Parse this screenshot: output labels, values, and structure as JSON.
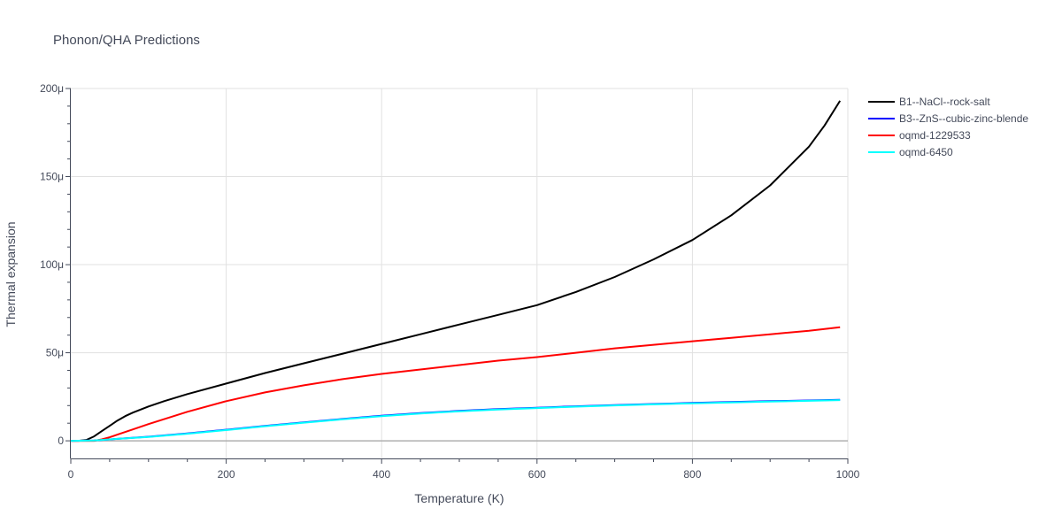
{
  "chart_data": {
    "type": "line",
    "title": "Phonon/QHA Predictions",
    "xlabel": "Temperature (K)",
    "ylabel": "Thermal expansion",
    "xlim": [
      0,
      1000
    ],
    "ylim": [
      -10,
      200
    ],
    "x_ticks": [
      0,
      200,
      400,
      600,
      800,
      1000
    ],
    "x_tick_labels": [
      "0",
      "200",
      "400",
      "600",
      "800",
      "1000"
    ],
    "y_ticks": [
      0,
      50,
      100,
      150,
      200
    ],
    "y_tick_labels": [
      "0",
      "50μ",
      "100μ",
      "150μ",
      "200μ"
    ],
    "grid": true,
    "legend_position": "top-right",
    "series": [
      {
        "name": "B1--NaCl--rock-salt",
        "color": "#000000",
        "x": [
          0,
          10,
          20,
          30,
          40,
          50,
          60,
          70,
          80,
          100,
          120,
          150,
          200,
          250,
          300,
          350,
          400,
          450,
          500,
          550,
          600,
          650,
          700,
          750,
          800,
          850,
          900,
          950,
          970,
          990
        ],
        "y": [
          0,
          0,
          0.5,
          2.5,
          5.5,
          8.5,
          11.5,
          14,
          16,
          19.5,
          22.5,
          26.5,
          32.5,
          38.5,
          44,
          49.5,
          55,
          60.5,
          66,
          71.5,
          77,
          84.5,
          93,
          103,
          114,
          128,
          145,
          167,
          179,
          193
        ]
      },
      {
        "name": "B3--ZnS--cubic-zinc-blende",
        "color": "#0000ff",
        "x": [
          0,
          30,
          50,
          100,
          150,
          200,
          250,
          300,
          350,
          400,
          450,
          500,
          550,
          600,
          650,
          700,
          750,
          800,
          850,
          900,
          950,
          990
        ],
        "y": [
          0,
          0.2,
          0.8,
          2.3,
          4.2,
          6.3,
          8.5,
          10.5,
          12.4,
          14.2,
          15.7,
          17,
          18,
          18.8,
          19.6,
          20.3,
          20.9,
          21.5,
          22,
          22.5,
          22.9,
          23.3
        ]
      },
      {
        "name": "oqmd-1229533",
        "color": "#ff0000",
        "x": [
          0,
          20,
          30,
          40,
          50,
          60,
          80,
          100,
          150,
          200,
          250,
          300,
          350,
          400,
          450,
          500,
          550,
          600,
          650,
          700,
          750,
          800,
          850,
          900,
          950,
          990
        ],
        "y": [
          0,
          0,
          0,
          0.8,
          2,
          3.5,
          6.5,
          9.5,
          16.5,
          22.5,
          27.5,
          31.5,
          35,
          38,
          40.5,
          43,
          45.5,
          47.5,
          50,
          52.5,
          54.5,
          56.5,
          58.5,
          60.5,
          62.5,
          64.5
        ]
      },
      {
        "name": "oqmd-6450",
        "color": "#00ffff",
        "x": [
          0,
          30,
          50,
          100,
          150,
          200,
          250,
          300,
          350,
          400,
          450,
          500,
          550,
          600,
          650,
          700,
          750,
          800,
          850,
          900,
          950,
          990
        ],
        "y": [
          0,
          0.2,
          0.8,
          2.2,
          4,
          6.1,
          8.3,
          10.3,
          12.2,
          14,
          15.5,
          16.8,
          17.8,
          18.6,
          19.4,
          20.1,
          20.7,
          21.3,
          21.8,
          22.3,
          22.7,
          23.1
        ]
      }
    ]
  }
}
